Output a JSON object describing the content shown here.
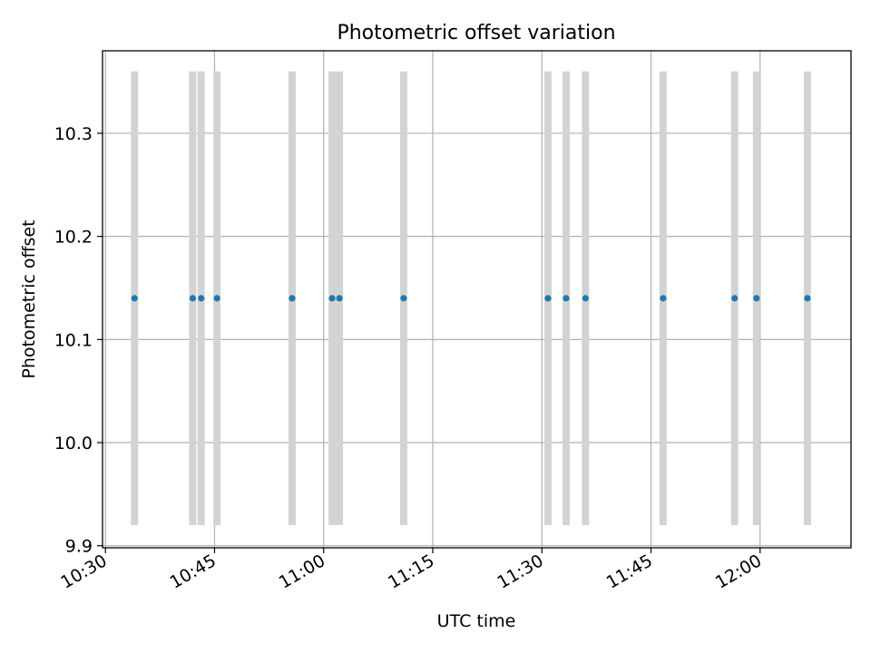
{
  "chart_data": {
    "type": "scatter",
    "title": "Photometric offset variation",
    "xlabel": "UTC time",
    "ylabel": "Photometric offset",
    "x_axis_type": "time",
    "xlim": [
      "10:29:36",
      "12:12:30"
    ],
    "ylim": [
      9.898,
      10.38
    ],
    "x_ticks": [
      "10:30",
      "10:45",
      "11:00",
      "11:15",
      "11:30",
      "11:45",
      "12:00"
    ],
    "y_ticks": [
      9.9,
      10.0,
      10.1,
      10.2,
      10.3
    ],
    "y_tick_labels": [
      "9.9",
      "10.0",
      "10.1",
      "10.2",
      "10.3"
    ],
    "grid": true,
    "legend": "none",
    "series": [
      {
        "marker": "point",
        "color": "#1f77b4",
        "x": [
          "10:34:00",
          "10:42:00",
          "10:43:10",
          "10:45:20",
          "10:55:40",
          "11:01:10",
          "11:02:10",
          "11:11:00",
          "11:30:50",
          "11:33:20",
          "11:36:00",
          "11:46:40",
          "11:56:30",
          "11:59:30",
          "12:06:30"
        ],
        "y": [
          10.14,
          10.14,
          10.14,
          10.14,
          10.14,
          10.14,
          10.14,
          10.14,
          10.14,
          10.14,
          10.14,
          10.14,
          10.14,
          10.14,
          10.14
        ],
        "error_bar": {
          "lower": 9.92,
          "upper": 10.36,
          "color": "#d3d3d3"
        }
      }
    ]
  }
}
